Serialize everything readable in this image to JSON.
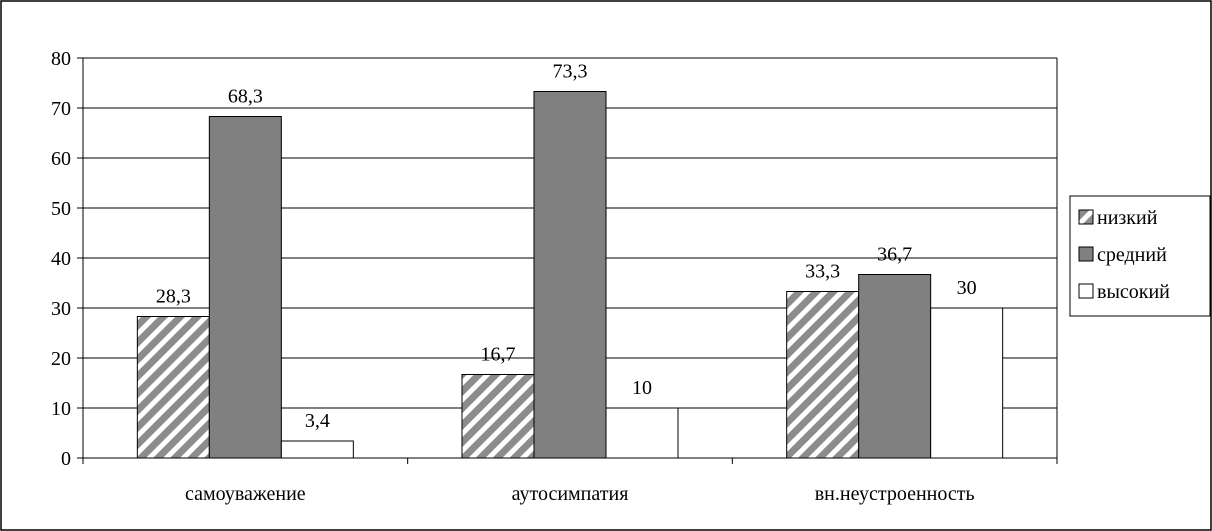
{
  "chart_data": {
    "type": "bar",
    "categories": [
      "самоуважение",
      "аутосимпатия",
      "вн.неустроенность"
    ],
    "series": [
      {
        "name": "низкий",
        "values": [
          28.3,
          16.7,
          33.3
        ],
        "labels": [
          "28,3",
          "16,7",
          "33,3"
        ],
        "fill": "hatch",
        "color": "#8c8c8c"
      },
      {
        "name": "средний",
        "values": [
          68.3,
          73.3,
          36.7
        ],
        "labels": [
          "68,3",
          "73,3",
          "36,7"
        ],
        "fill": "solid",
        "color": "#808080"
      },
      {
        "name": "высокий",
        "values": [
          3.4,
          10,
          30
        ],
        "labels": [
          "3,4",
          "10",
          "30"
        ],
        "fill": "solid",
        "color": "#ffffff"
      }
    ],
    "yticks": [
      "0",
      "10",
      "20",
      "30",
      "40",
      "50",
      "60",
      "70",
      "80"
    ],
    "ylim": [
      0,
      80
    ],
    "title": "",
    "xlabel": "",
    "ylabel": "",
    "grid": true,
    "legend": "right"
  }
}
